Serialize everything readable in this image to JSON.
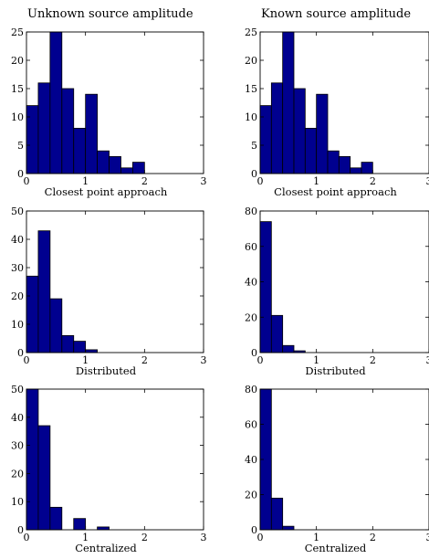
{
  "columns": {
    "left": "Unknown source amplitude",
    "right": "Known source amplitude"
  },
  "chart_data": [
    {
      "type": "bar",
      "xlabel": "Closest point approach",
      "ylabel": "",
      "xlim": [
        0,
        3
      ],
      "ylim": [
        0,
        25
      ],
      "xticks": [
        "0",
        "1",
        "2",
        "3"
      ],
      "yticks": [
        "0",
        "5",
        "10",
        "15",
        "20",
        "25"
      ],
      "bin_width": 0.2,
      "bin_starts": [
        0,
        0.2,
        0.4,
        0.6,
        0.8,
        1.0,
        1.2,
        1.4,
        1.6,
        1.8
      ],
      "values": [
        12,
        16,
        25,
        15,
        8,
        14,
        4,
        3,
        1,
        2
      ]
    },
    {
      "type": "bar",
      "xlabel": "Closest point approach",
      "ylabel": "",
      "xlim": [
        0,
        3
      ],
      "ylim": [
        0,
        25
      ],
      "xticks": [
        "0",
        "1",
        "2",
        "3"
      ],
      "yticks": [
        "0",
        "5",
        "10",
        "15",
        "20",
        "25"
      ],
      "bin_width": 0.2,
      "bin_starts": [
        0,
        0.2,
        0.4,
        0.6,
        0.8,
        1.0,
        1.2,
        1.4,
        1.6,
        1.8
      ],
      "values": [
        12,
        16,
        25,
        15,
        8,
        14,
        4,
        3,
        1,
        2
      ]
    },
    {
      "type": "bar",
      "xlabel": "Distributed",
      "ylabel": "",
      "xlim": [
        0,
        3
      ],
      "ylim": [
        0,
        50
      ],
      "xticks": [
        "0",
        "1",
        "2",
        "3"
      ],
      "yticks": [
        "0",
        "10",
        "20",
        "30",
        "40",
        "50"
      ],
      "bin_width": 0.2,
      "bin_starts": [
        0,
        0.2,
        0.4,
        0.6,
        0.8,
        1.0
      ],
      "values": [
        27,
        43,
        19,
        6,
        4,
        1
      ]
    },
    {
      "type": "bar",
      "xlabel": "Distributed",
      "ylabel": "",
      "xlim": [
        0,
        3
      ],
      "ylim": [
        0,
        80
      ],
      "xticks": [
        "0",
        "1",
        "2",
        "3"
      ],
      "yticks": [
        "0",
        "20",
        "40",
        "60",
        "80"
      ],
      "bin_width": 0.2,
      "bin_starts": [
        0,
        0.2,
        0.4,
        0.6
      ],
      "values": [
        74,
        21,
        4,
        1
      ]
    },
    {
      "type": "bar",
      "xlabel": "Centralized",
      "ylabel": "",
      "xlim": [
        0,
        3
      ],
      "ylim": [
        0,
        50
      ],
      "xticks": [
        "0",
        "1",
        "2",
        "3"
      ],
      "yticks": [
        "0",
        "10",
        "20",
        "30",
        "40",
        "50"
      ],
      "bin_width": 0.2,
      "bin_starts": [
        0,
        0.2,
        0.4,
        0.6,
        0.8,
        1.0,
        1.2
      ],
      "values": [
        50,
        37,
        8,
        0,
        4,
        0,
        1
      ]
    },
    {
      "type": "bar",
      "xlabel": "Centralized",
      "ylabel": "",
      "xlim": [
        0,
        3
      ],
      "ylim": [
        0,
        80
      ],
      "xticks": [
        "0",
        "1",
        "2",
        "3"
      ],
      "yticks": [
        "0",
        "20",
        "40",
        "60",
        "80"
      ],
      "bin_width": 0.2,
      "bin_starts": [
        0,
        0.2,
        0.4
      ],
      "values": [
        80,
        18,
        2
      ]
    }
  ],
  "colors": {
    "bar_fill": "#00008f",
    "bar_edge": "#000000",
    "axis": "#000000"
  }
}
